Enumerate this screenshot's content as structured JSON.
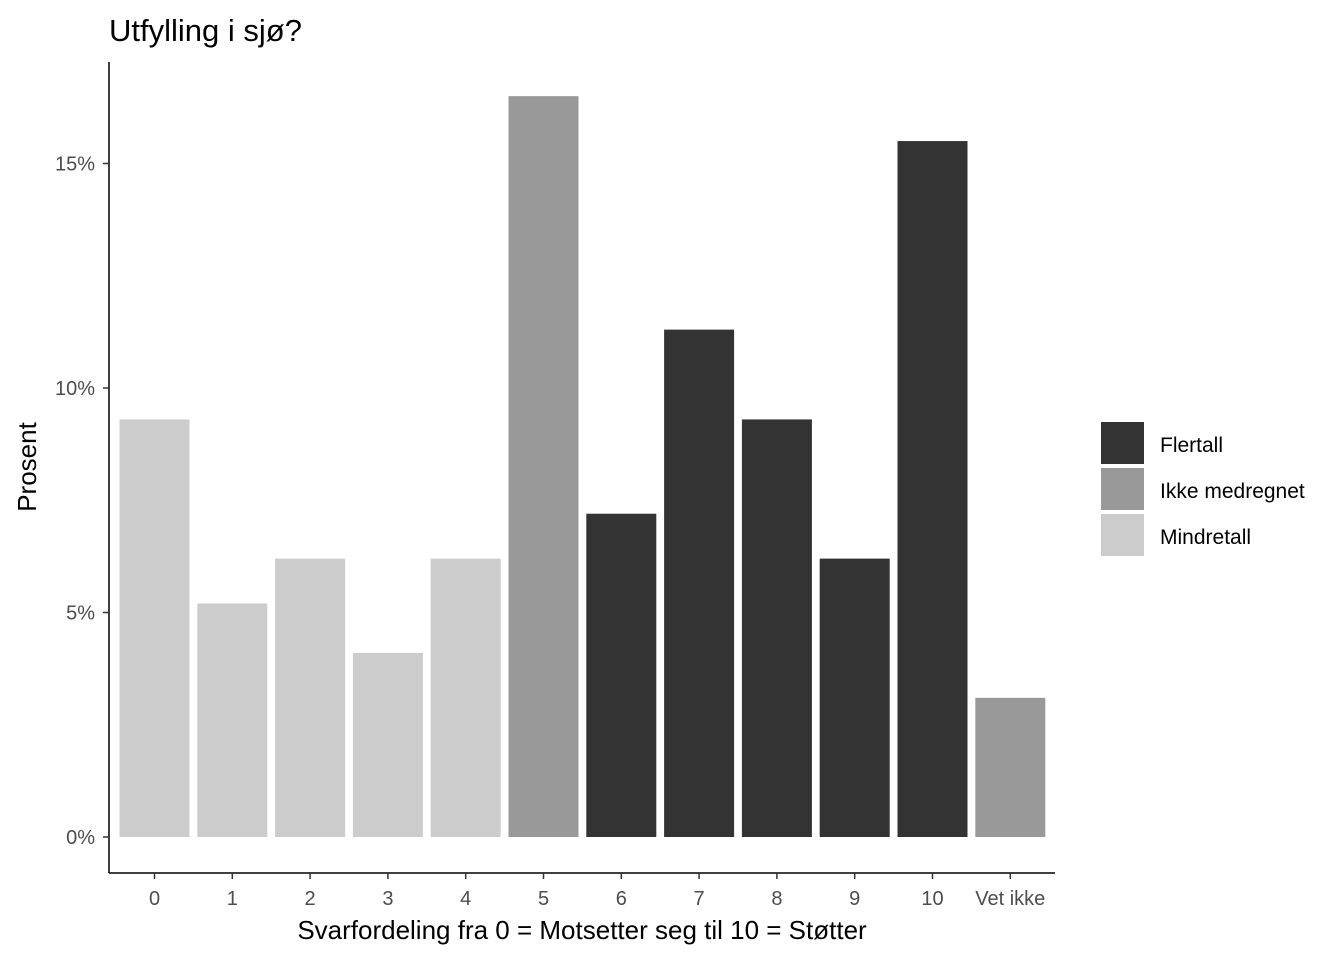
{
  "chart_data": {
    "type": "bar",
    "title": "Utfylling i sjø?",
    "xlabel": "Svarfordeling fra 0 = Motsetter seg til 10 = Støtter",
    "ylabel": "Prosent",
    "categories": [
      "0",
      "1",
      "2",
      "3",
      "4",
      "5",
      "6",
      "7",
      "8",
      "9",
      "10",
      "Vet ikke"
    ],
    "values": [
      9.3,
      5.2,
      6.2,
      4.1,
      6.2,
      16.5,
      7.2,
      11.3,
      9.3,
      6.2,
      15.5,
      3.1
    ],
    "groups": [
      "Mindretall",
      "Mindretall",
      "Mindretall",
      "Mindretall",
      "Mindretall",
      "Ikke medregnet",
      "Flertall",
      "Flertall",
      "Flertall",
      "Flertall",
      "Flertall",
      "Ikke medregnet"
    ],
    "ylim": [
      0,
      16.5
    ],
    "yticks": [
      0,
      5,
      10,
      15
    ],
    "ytick_labels": [
      "0%",
      "5%",
      "10%",
      "15%"
    ],
    "grid": false,
    "legend": {
      "position": "right",
      "entries": [
        {
          "name": "Flertall",
          "color": "#333333"
        },
        {
          "name": "Ikke medregnet",
          "color": "#999999"
        },
        {
          "name": "Mindretall",
          "color": "#cccccc"
        }
      ]
    }
  }
}
